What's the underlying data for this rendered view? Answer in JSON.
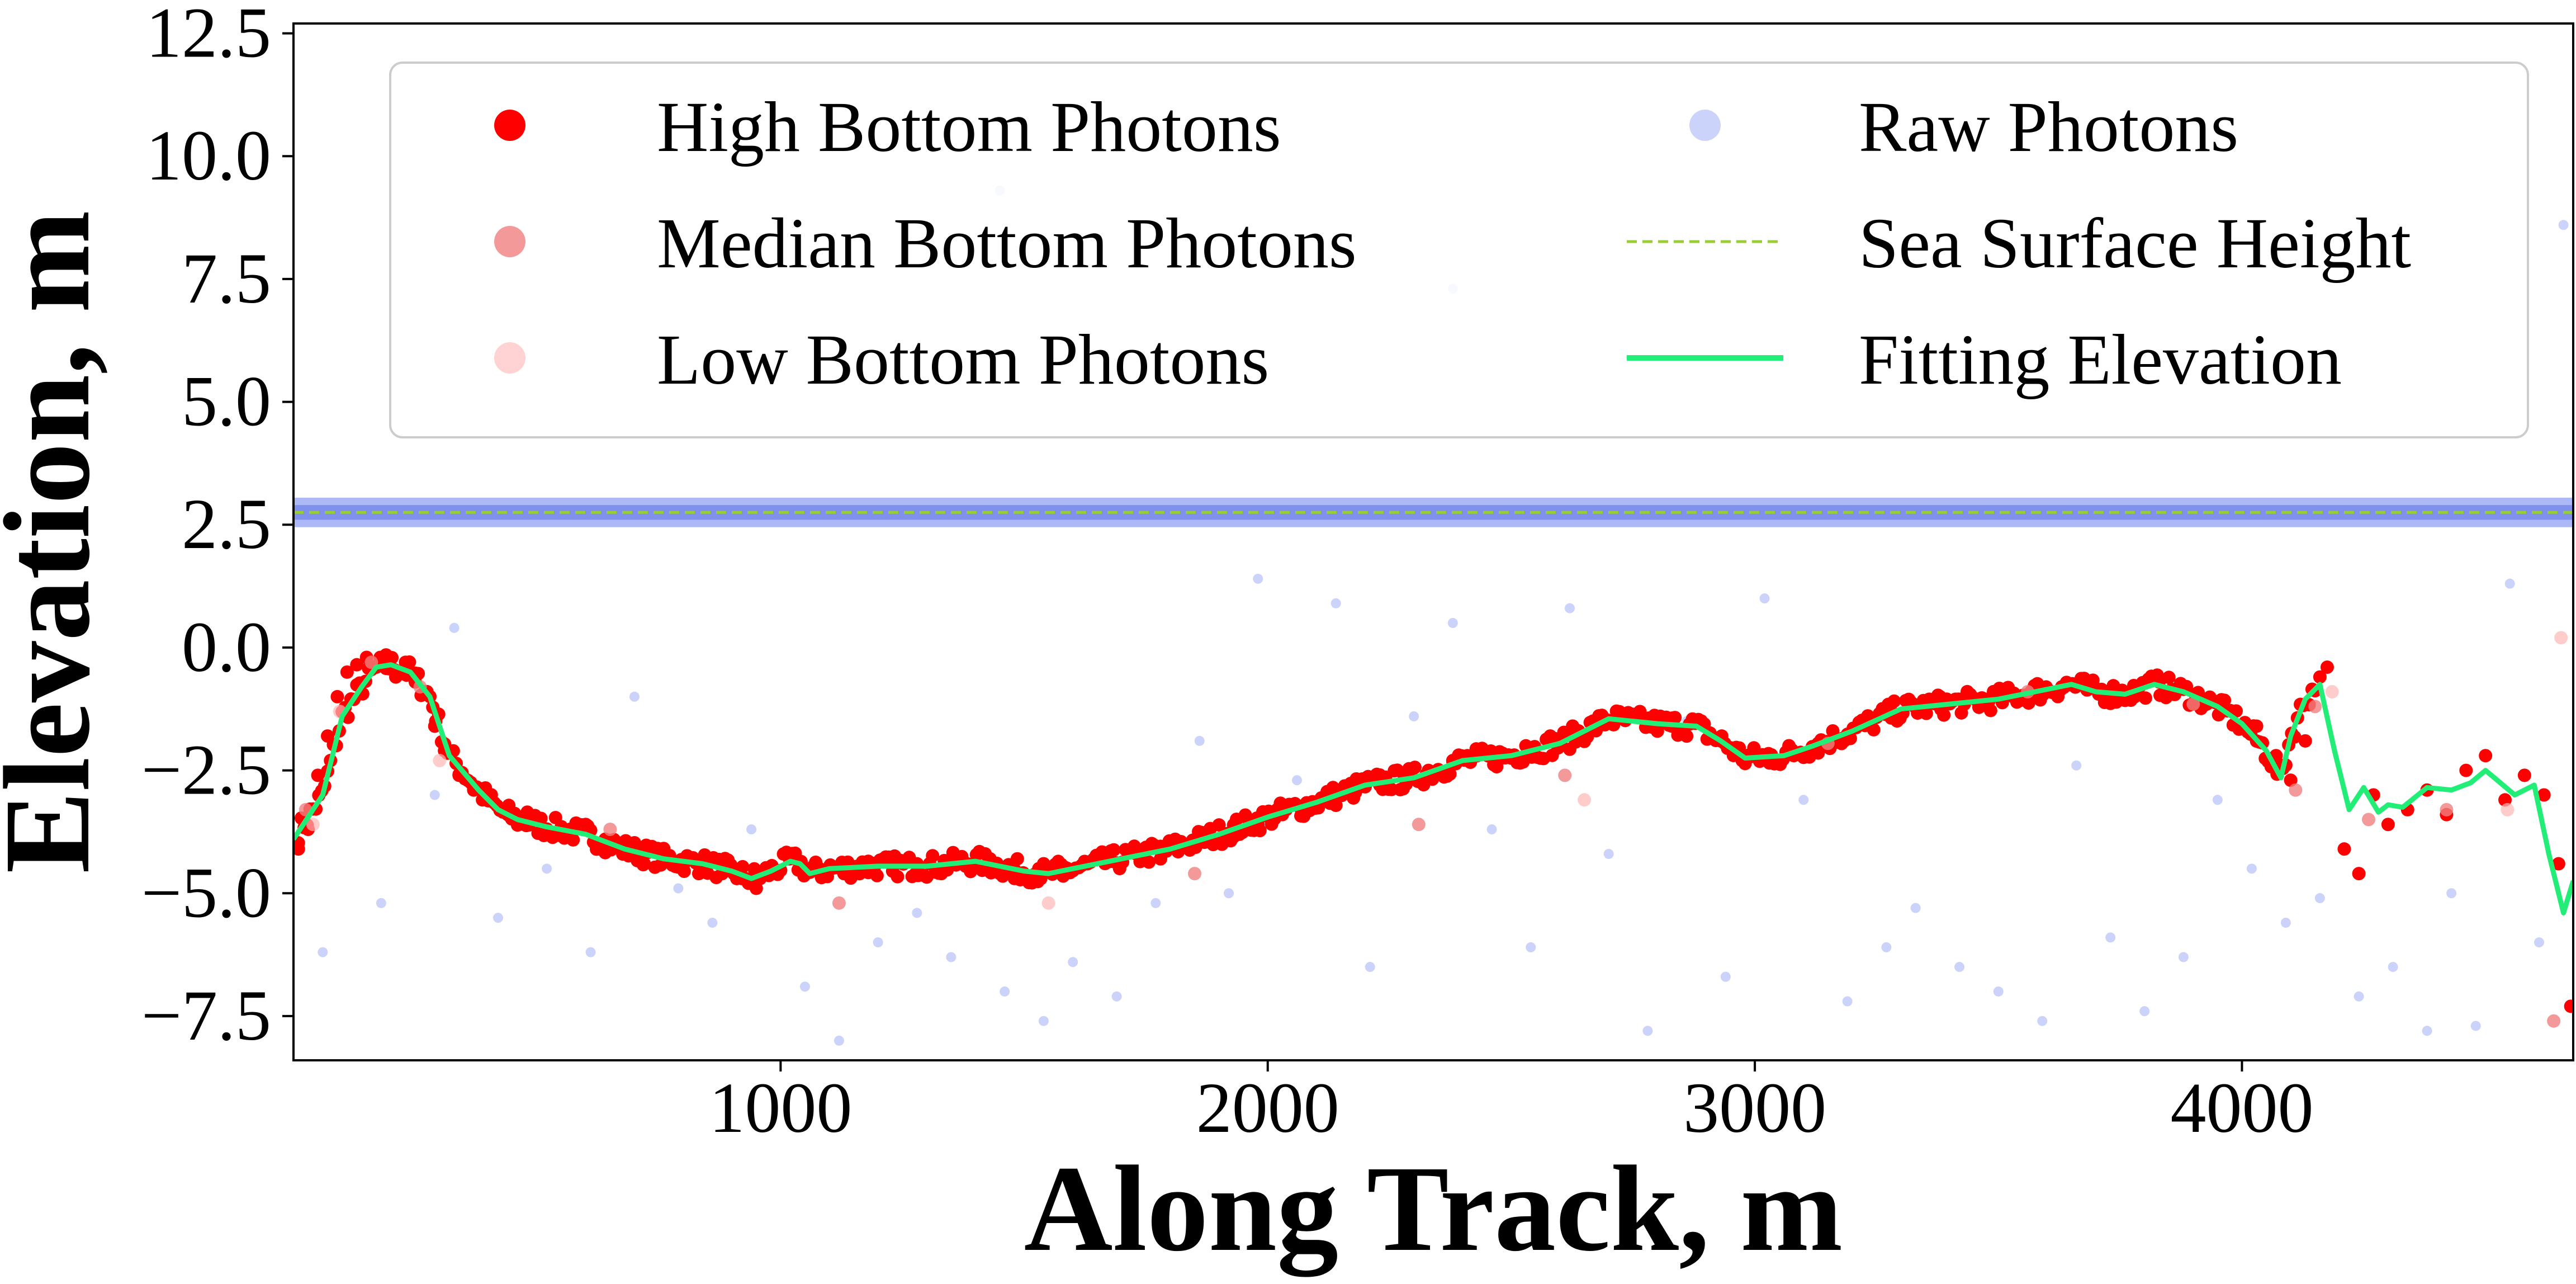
{
  "chart_data": {
    "type": "scatter",
    "title": "",
    "xlabel": "Along Track, m",
    "ylabel": "Elevation, m",
    "xlim": [
      0,
      4680
    ],
    "ylim": [
      -8.4,
      12.7
    ],
    "x_ticks": [
      1000,
      2000,
      3000,
      4000
    ],
    "x_tick_labels": [
      "1000",
      "2000",
      "3000",
      "4000"
    ],
    "y_ticks": [
      -7.5,
      -5.0,
      -2.5,
      0.0,
      2.5,
      5.0,
      7.5,
      10.0,
      12.5
    ],
    "y_tick_labels": [
      "−7.5",
      "−5.0",
      "−2.5",
      "0.0",
      "2.5",
      "5.0",
      "7.5",
      "10.0",
      "12.5"
    ],
    "grid": false,
    "legend_position": "top",
    "legend": [
      {
        "label": "High Bottom Photons",
        "kind": "marker",
        "color": "#ff0000",
        "opacity": 1.0
      },
      {
        "label": "Median Bottom Photons",
        "kind": "marker",
        "color": "#f08080",
        "opacity": 0.8
      },
      {
        "label": "Low Bottom Photons",
        "kind": "marker",
        "color": "#ffb6b6",
        "opacity": 0.6
      },
      {
        "label": "Raw Photons",
        "kind": "marker",
        "color": "#6a80f0",
        "opacity": 0.35
      },
      {
        "label": "Sea Surface Height",
        "kind": "dashed-line",
        "color": "#9acd32"
      },
      {
        "label": "Fitting Elevation",
        "kind": "line",
        "color": "#22ee77"
      }
    ],
    "sea_surface_height": 2.75,
    "series": [
      {
        "name": "Fitting Elevation",
        "style": "line",
        "color": "#22ee77",
        "x": [
          0,
          60,
          100,
          140,
          170,
          200,
          240,
          280,
          320,
          380,
          420,
          460,
          520,
          600,
          680,
          760,
          840,
          900,
          940,
          980,
          1020,
          1040,
          1060,
          1100,
          1200,
          1300,
          1400,
          1500,
          1550,
          1600,
          1700,
          1800,
          1900,
          2000,
          2100,
          2200,
          2300,
          2400,
          2500,
          2600,
          2700,
          2800,
          2880,
          2930,
          2980,
          3060,
          3120,
          3200,
          3300,
          3400,
          3500,
          3600,
          3650,
          3700,
          3760,
          3820,
          3880,
          3950,
          4000,
          4050,
          4080,
          4100,
          4130,
          4160,
          4190,
          4220,
          4250,
          4280,
          4300,
          4330,
          4380,
          4430,
          4470,
          4500,
          4530,
          4560,
          4600,
          4630,
          4660,
          4680
        ],
        "y": [
          -3.9,
          -3.0,
          -1.4,
          -0.8,
          -0.4,
          -0.35,
          -0.5,
          -1.0,
          -2.2,
          -2.9,
          -3.3,
          -3.5,
          -3.65,
          -3.8,
          -4.1,
          -4.3,
          -4.4,
          -4.55,
          -4.7,
          -4.55,
          -4.35,
          -4.4,
          -4.6,
          -4.5,
          -4.45,
          -4.45,
          -4.35,
          -4.55,
          -4.6,
          -4.5,
          -4.3,
          -4.1,
          -3.8,
          -3.45,
          -3.15,
          -2.8,
          -2.65,
          -2.3,
          -2.2,
          -1.95,
          -1.45,
          -1.55,
          -1.6,
          -1.9,
          -2.25,
          -2.2,
          -2.0,
          -1.7,
          -1.25,
          -1.15,
          -1.05,
          -0.85,
          -0.75,
          -0.9,
          -0.95,
          -0.75,
          -0.9,
          -1.2,
          -1.55,
          -2.1,
          -2.65,
          -1.8,
          -1.05,
          -0.75,
          -2.1,
          -3.3,
          -2.85,
          -3.35,
          -3.2,
          -3.25,
          -2.85,
          -2.9,
          -2.75,
          -2.5,
          -2.75,
          -3.0,
          -2.8,
          -4.2,
          -5.4,
          -4.75
        ]
      },
      {
        "name": "High Bottom Photons",
        "style": "markers",
        "color": "#ff0000",
        "x": [
          10,
          30,
          50,
          70,
          90,
          110,
          130,
          150,
          170,
          190,
          210,
          230,
          250,
          270,
          290,
          310,
          340,
          370,
          400,
          440,
          480,
          520,
          560,
          600,
          640,
          680,
          720,
          760,
          800,
          840,
          880,
          920,
          950,
          990,
          1030,
          1080,
          1130,
          1180,
          1230,
          1280,
          1330,
          1380,
          1430,
          1480,
          1530,
          1580,
          1630,
          1680,
          1730,
          1780,
          1830,
          1880,
          1930,
          1980,
          2030,
          2080,
          2130,
          2180,
          2230,
          2280,
          2330,
          2380,
          2430,
          2480,
          2530,
          2580,
          2630,
          2680,
          2730,
          2780,
          2830,
          2880,
          2930,
          2980,
          3030,
          3080,
          3130,
          3180,
          3230,
          3280,
          3330,
          3380,
          3430,
          3480,
          3530,
          3580,
          3630,
          3680,
          3730,
          3780,
          3830,
          3880,
          3930,
          3980,
          4030,
          4070,
          4100,
          4130,
          4160,
          4175,
          4210,
          4240,
          4270,
          4300,
          4340,
          4380,
          4420,
          4460,
          4500,
          4540,
          4580,
          4620,
          4650,
          4675
        ],
        "y": [
          -4.1,
          -3.7,
          -2.6,
          -1.8,
          -1.0,
          -0.5,
          -0.35,
          -0.2,
          -0.4,
          -0.15,
          -0.6,
          -0.3,
          -0.7,
          -0.9,
          -1.6,
          -2.1,
          -2.6,
          -2.9,
          -3.1,
          -3.4,
          -3.35,
          -3.7,
          -3.8,
          -3.6,
          -3.9,
          -4.0,
          -4.4,
          -4.2,
          -4.45,
          -4.3,
          -4.6,
          -4.7,
          -4.9,
          -4.55,
          -4.3,
          -4.5,
          -4.6,
          -4.35,
          -4.55,
          -4.4,
          -4.6,
          -4.45,
          -4.3,
          -4.7,
          -4.5,
          -4.65,
          -4.4,
          -4.35,
          -4.2,
          -4.3,
          -4.05,
          -3.9,
          -3.85,
          -3.6,
          -3.4,
          -3.2,
          -3.0,
          -2.95,
          -2.8,
          -2.6,
          -2.5,
          -2.3,
          -2.2,
          -2.25,
          -2.0,
          -1.8,
          -1.7,
          -1.45,
          -1.35,
          -1.55,
          -1.6,
          -1.5,
          -1.9,
          -2.2,
          -2.35,
          -2.2,
          -1.95,
          -1.85,
          -1.5,
          -1.3,
          -1.2,
          -1.0,
          -1.15,
          -1.1,
          -1.0,
          -0.95,
          -0.8,
          -0.7,
          -0.9,
          -1.0,
          -0.7,
          -0.85,
          -1.1,
          -1.3,
          -1.6,
          -2.2,
          -2.7,
          -1.9,
          -0.6,
          -0.4,
          -4.1,
          -4.6,
          -3.0,
          -3.6,
          -3.3,
          -2.9,
          -3.4,
          -2.5,
          -2.2,
          -3.1,
          -2.6,
          -3.0,
          -4.4,
          -7.3
        ]
      },
      {
        "name": "Median Bottom Photons",
        "style": "markers",
        "color": "#f08080",
        "x": [
          25,
          160,
          260,
          650,
          1120,
          1850,
          2310,
          2610,
          3150,
          3560,
          3900,
          4110,
          4150,
          4260,
          4420,
          4640
        ],
        "y": [
          -3.3,
          -0.3,
          -0.8,
          -3.7,
          -5.2,
          -4.6,
          -3.6,
          -2.6,
          -1.95,
          -0.9,
          -1.15,
          -2.9,
          -1.2,
          -3.5,
          -3.3,
          -7.6
        ]
      },
      {
        "name": "Low Bottom Photons",
        "style": "markers",
        "color": "#ffb6b6",
        "x": [
          40,
          95,
          300,
          1550,
          2650,
          4185,
          4545,
          4655
        ],
        "y": [
          -3.6,
          -1.3,
          -2.3,
          -5.2,
          -3.1,
          -0.9,
          -3.3,
          0.2
        ]
      },
      {
        "name": "Raw Photons",
        "style": "markers",
        "color": "#6a80f0",
        "x": [
          60,
          180,
          290,
          330,
          420,
          520,
          610,
          700,
          790,
          860,
          940,
          1050,
          1120,
          1200,
          1280,
          1350,
          1460,
          1540,
          1600,
          1690,
          1770,
          1860,
          1920,
          1980,
          2060,
          2140,
          2210,
          2300,
          2380,
          2460,
          2540,
          2620,
          2700,
          2780,
          2860,
          2940,
          3020,
          3100,
          3190,
          3270,
          3330,
          3420,
          3500,
          3590,
          3660,
          3730,
          3800,
          3880,
          3950,
          4020,
          4090,
          4160,
          4240,
          4310,
          4380,
          4430,
          4480,
          4550,
          4610,
          4660,
          1450,
          2380
        ],
        "y": [
          -6.2,
          -5.2,
          -3.0,
          0.4,
          -5.5,
          -4.5,
          -6.2,
          -1.0,
          -4.9,
          -5.6,
          -3.7,
          -6.9,
          -8.0,
          -6.0,
          -5.4,
          -6.3,
          -7.0,
          -7.6,
          -6.4,
          -7.1,
          -5.2,
          -1.9,
          -5.0,
          1.4,
          -2.7,
          0.9,
          -6.5,
          -1.4,
          0.5,
          -3.7,
          -6.1,
          0.8,
          -4.2,
          -7.8,
          -1.5,
          -6.7,
          1.0,
          -3.1,
          -7.2,
          -6.1,
          -5.3,
          -6.5,
          -7.0,
          -7.6,
          -2.4,
          -5.9,
          -7.4,
          -6.3,
          -3.1,
          -4.5,
          -5.6,
          -5.1,
          -7.1,
          -6.5,
          -7.8,
          -5.0,
          -7.7,
          1.3,
          -6.0,
          8.6,
          9.3,
          7.3
        ]
      }
    ]
  }
}
